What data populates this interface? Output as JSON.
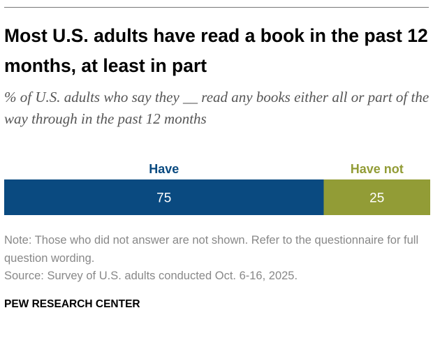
{
  "title": "Most U.S. adults have read a book in the past 12 months, at least in part",
  "subtitle": "% of U.S. adults who say they __ read any books either all or part of the way through in the past 12 months",
  "chart_data": {
    "type": "bar",
    "orientation": "horizontal-stacked",
    "categories": [
      "Have",
      "Have not"
    ],
    "values": [
      75,
      25
    ],
    "colors": [
      "#0a4a80",
      "#929c36"
    ],
    "xlim": [
      0,
      100
    ]
  },
  "notes": [
    "Note: Those who did not answer are not shown. Refer to the questionnaire for full question wording.",
    "Source: Survey of U.S. adults conducted Oct. 6-16, 2025."
  ],
  "brand": "PEW RESEARCH CENTER"
}
